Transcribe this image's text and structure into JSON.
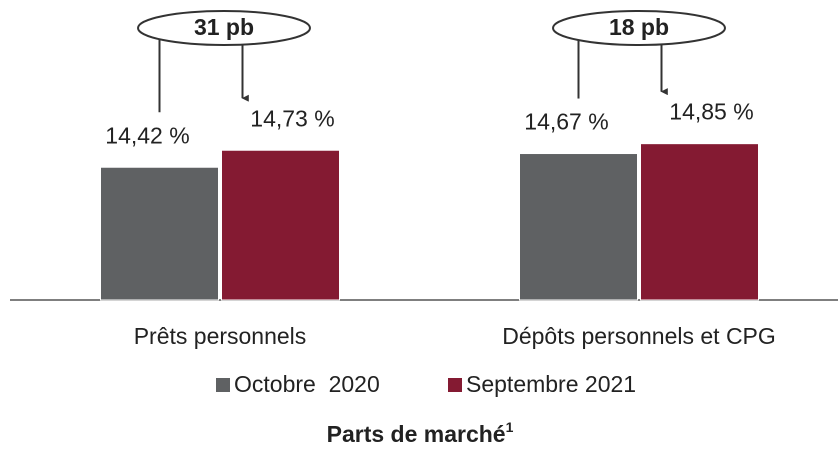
{
  "chart_data": {
    "type": "bar",
    "title": "Parts de marché",
    "title_note": "1",
    "categories": [
      "Prêts personnels",
      "Dépôts personnels et CPG"
    ],
    "series": [
      {
        "name": "Octobre  2020",
        "color": "#5f6163",
        "values": [
          14.42,
          14.67
        ],
        "value_labels": [
          "14,42 %",
          "14,67 %"
        ]
      },
      {
        "name": "Septembre 2021",
        "color": "#841a32",
        "values": [
          14.73,
          14.85
        ],
        "value_labels": [
          "14,73 %",
          "14,85 %"
        ]
      }
    ],
    "annotations": [
      "31 pb",
      "18 pb"
    ],
    "ylim": [
      12,
      15.5
    ]
  }
}
